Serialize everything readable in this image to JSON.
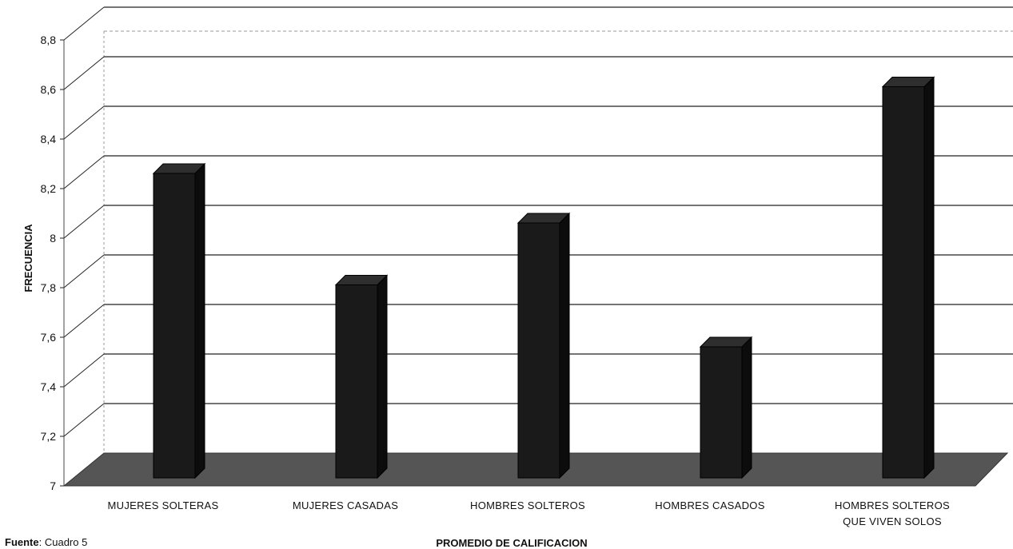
{
  "chart_data": {
    "type": "bar",
    "title": "",
    "xlabel": "PROMEDIO DE CALIFICACION",
    "ylabel": "FRECUENCIA",
    "ylim": [
      7,
      8.8
    ],
    "yticks": [
      "7",
      "7,2",
      "7,4",
      "7,6",
      "7,8",
      "8",
      "8,2",
      "8,4",
      "8,6",
      "8,8"
    ],
    "categories": [
      [
        "MUJERES SOLTERAS"
      ],
      [
        "MUJERES CASADAS"
      ],
      [
        "HOMBRES SOLTEROS"
      ],
      [
        "HOMBRES CASADOS"
      ],
      [
        "HOMBRES SOLTEROS",
        "QUE VIVEN SOLOS"
      ]
    ],
    "values": [
      8.3,
      7.85,
      8.1,
      7.6,
      8.65
    ],
    "grid": true,
    "style": "3d-bar",
    "colors": {
      "bar": "#1a1a1a",
      "bar_side": "#0c0c0c",
      "bar_top": "#2e2e2e",
      "floor": "#555555",
      "grid": "#222222"
    }
  },
  "source": {
    "label": "Fuente",
    "text": ": Cuadro 5"
  }
}
